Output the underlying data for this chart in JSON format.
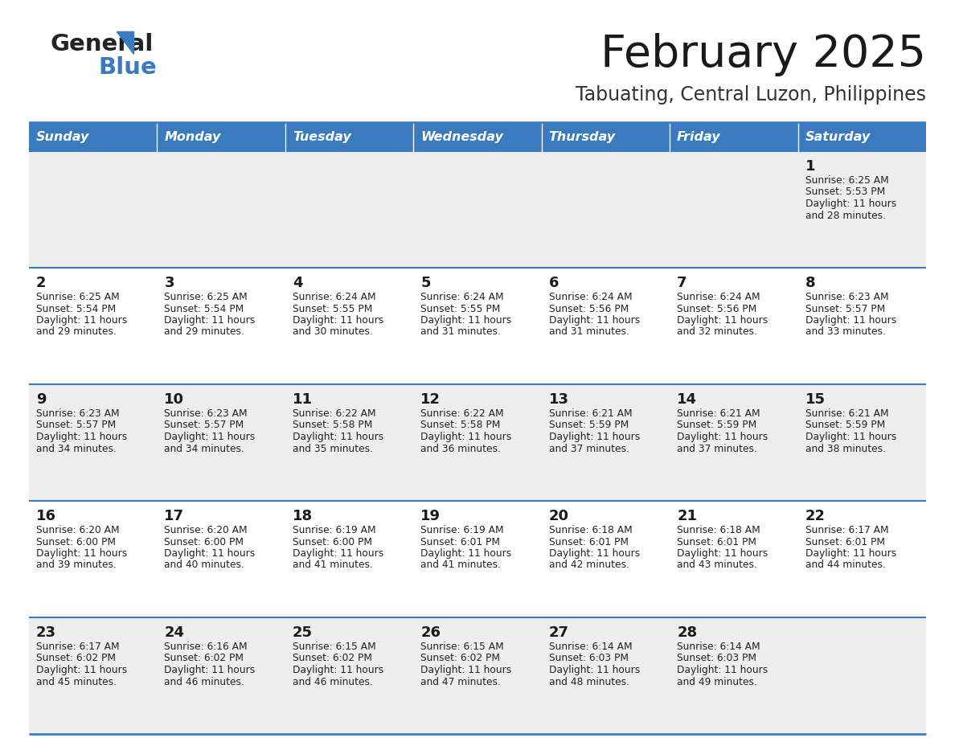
{
  "title": "February 2025",
  "subtitle": "Tabuating, Central Luzon, Philippines",
  "header_bg_color": "#3a7abf",
  "header_text_color": "#ffffff",
  "odd_row_bg": "#eeeeee",
  "even_row_bg": "#ffffff",
  "border_color": "#3a7abf",
  "title_color": "#1a1a1a",
  "subtitle_color": "#1a1a1a",
  "day_headers": [
    "Sunday",
    "Monday",
    "Tuesday",
    "Wednesday",
    "Thursday",
    "Friday",
    "Saturday"
  ],
  "calendar_data": [
    [
      null,
      null,
      null,
      null,
      null,
      null,
      {
        "day": 1,
        "sunrise": "6:25 AM",
        "sunset": "5:53 PM",
        "daylight_h": "11 hours",
        "daylight_m": "and 28 minutes."
      }
    ],
    [
      {
        "day": 2,
        "sunrise": "6:25 AM",
        "sunset": "5:54 PM",
        "daylight_h": "11 hours",
        "daylight_m": "and 29 minutes."
      },
      {
        "day": 3,
        "sunrise": "6:25 AM",
        "sunset": "5:54 PM",
        "daylight_h": "11 hours",
        "daylight_m": "and 29 minutes."
      },
      {
        "day": 4,
        "sunrise": "6:24 AM",
        "sunset": "5:55 PM",
        "daylight_h": "11 hours",
        "daylight_m": "and 30 minutes."
      },
      {
        "day": 5,
        "sunrise": "6:24 AM",
        "sunset": "5:55 PM",
        "daylight_h": "11 hours",
        "daylight_m": "and 31 minutes."
      },
      {
        "day": 6,
        "sunrise": "6:24 AM",
        "sunset": "5:56 PM",
        "daylight_h": "11 hours",
        "daylight_m": "and 31 minutes."
      },
      {
        "day": 7,
        "sunrise": "6:24 AM",
        "sunset": "5:56 PM",
        "daylight_h": "11 hours",
        "daylight_m": "and 32 minutes."
      },
      {
        "day": 8,
        "sunrise": "6:23 AM",
        "sunset": "5:57 PM",
        "daylight_h": "11 hours",
        "daylight_m": "and 33 minutes."
      }
    ],
    [
      {
        "day": 9,
        "sunrise": "6:23 AM",
        "sunset": "5:57 PM",
        "daylight_h": "11 hours",
        "daylight_m": "and 34 minutes."
      },
      {
        "day": 10,
        "sunrise": "6:23 AM",
        "sunset": "5:57 PM",
        "daylight_h": "11 hours",
        "daylight_m": "and 34 minutes."
      },
      {
        "day": 11,
        "sunrise": "6:22 AM",
        "sunset": "5:58 PM",
        "daylight_h": "11 hours",
        "daylight_m": "and 35 minutes."
      },
      {
        "day": 12,
        "sunrise": "6:22 AM",
        "sunset": "5:58 PM",
        "daylight_h": "11 hours",
        "daylight_m": "and 36 minutes."
      },
      {
        "day": 13,
        "sunrise": "6:21 AM",
        "sunset": "5:59 PM",
        "daylight_h": "11 hours",
        "daylight_m": "and 37 minutes."
      },
      {
        "day": 14,
        "sunrise": "6:21 AM",
        "sunset": "5:59 PM",
        "daylight_h": "11 hours",
        "daylight_m": "and 37 minutes."
      },
      {
        "day": 15,
        "sunrise": "6:21 AM",
        "sunset": "5:59 PM",
        "daylight_h": "11 hours",
        "daylight_m": "and 38 minutes."
      }
    ],
    [
      {
        "day": 16,
        "sunrise": "6:20 AM",
        "sunset": "6:00 PM",
        "daylight_h": "11 hours",
        "daylight_m": "and 39 minutes."
      },
      {
        "day": 17,
        "sunrise": "6:20 AM",
        "sunset": "6:00 PM",
        "daylight_h": "11 hours",
        "daylight_m": "and 40 minutes."
      },
      {
        "day": 18,
        "sunrise": "6:19 AM",
        "sunset": "6:00 PM",
        "daylight_h": "11 hours",
        "daylight_m": "and 41 minutes."
      },
      {
        "day": 19,
        "sunrise": "6:19 AM",
        "sunset": "6:01 PM",
        "daylight_h": "11 hours",
        "daylight_m": "and 41 minutes."
      },
      {
        "day": 20,
        "sunrise": "6:18 AM",
        "sunset": "6:01 PM",
        "daylight_h": "11 hours",
        "daylight_m": "and 42 minutes."
      },
      {
        "day": 21,
        "sunrise": "6:18 AM",
        "sunset": "6:01 PM",
        "daylight_h": "11 hours",
        "daylight_m": "and 43 minutes."
      },
      {
        "day": 22,
        "sunrise": "6:17 AM",
        "sunset": "6:01 PM",
        "daylight_h": "11 hours",
        "daylight_m": "and 44 minutes."
      }
    ],
    [
      {
        "day": 23,
        "sunrise": "6:17 AM",
        "sunset": "6:02 PM",
        "daylight_h": "11 hours",
        "daylight_m": "and 45 minutes."
      },
      {
        "day": 24,
        "sunrise": "6:16 AM",
        "sunset": "6:02 PM",
        "daylight_h": "11 hours",
        "daylight_m": "and 46 minutes."
      },
      {
        "day": 25,
        "sunrise": "6:15 AM",
        "sunset": "6:02 PM",
        "daylight_h": "11 hours",
        "daylight_m": "and 46 minutes."
      },
      {
        "day": 26,
        "sunrise": "6:15 AM",
        "sunset": "6:02 PM",
        "daylight_h": "11 hours",
        "daylight_m": "and 47 minutes."
      },
      {
        "day": 27,
        "sunrise": "6:14 AM",
        "sunset": "6:03 PM",
        "daylight_h": "11 hours",
        "daylight_m": "and 48 minutes."
      },
      {
        "day": 28,
        "sunrise": "6:14 AM",
        "sunset": "6:03 PM",
        "daylight_h": "11 hours",
        "daylight_m": "and 49 minutes."
      },
      null
    ]
  ]
}
